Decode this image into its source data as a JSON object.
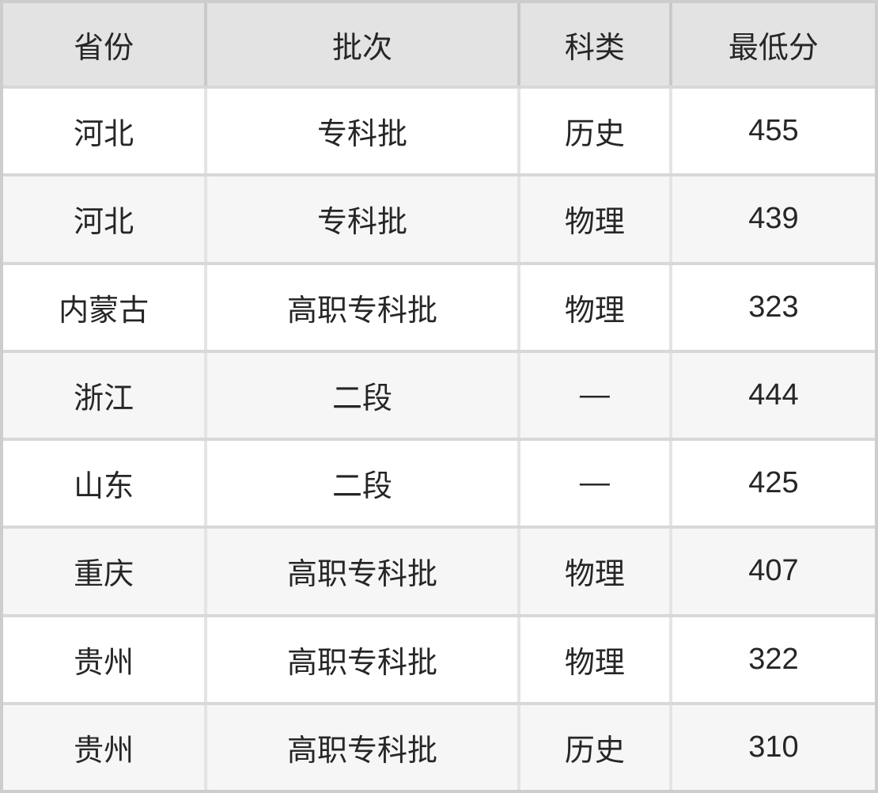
{
  "chart_data": {
    "type": "table",
    "columns": [
      "省份",
      "批次",
      "科类",
      "最低分"
    ],
    "rows": [
      [
        "河北",
        "专科批",
        "历史",
        "455"
      ],
      [
        "河北",
        "专科批",
        "物理",
        "439"
      ],
      [
        "内蒙古",
        "高职专科批",
        "物理",
        "323"
      ],
      [
        "浙江",
        "二段",
        "—",
        "444"
      ],
      [
        "山东",
        "二段",
        "—",
        "425"
      ],
      [
        "重庆",
        "高职专科批",
        "物理",
        "407"
      ],
      [
        "贵州",
        "高职专科批",
        "物理",
        "322"
      ],
      [
        "贵州",
        "高职专科批",
        "历史",
        "310"
      ]
    ],
    "column_semantics": [
      "province",
      "admission-batch",
      "subject-category",
      "minimum-score"
    ],
    "layout": "4-column bordered grid table, header row shaded, zebra-striped body rows"
  },
  "colors": {
    "header_bg": "#e3e3e3",
    "row_bg": "#ffffff",
    "row_alt_bg": "#f6f6f6",
    "outer_border": "#cdcdcd",
    "row_divider": "#d8d8d8",
    "text": "#262626"
  }
}
